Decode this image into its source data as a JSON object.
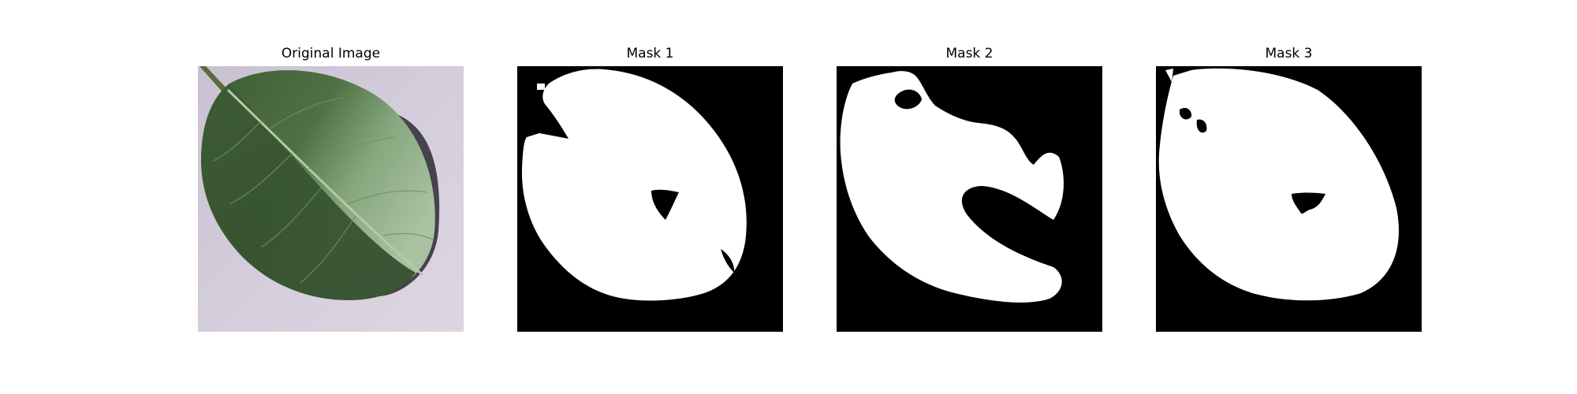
{
  "figure": {
    "panels": [
      {
        "title": "Original Image",
        "kind": "photo",
        "subject": "green apple leaf on pale lavender background"
      },
      {
        "title": "Mask 1",
        "kind": "binary-mask"
      },
      {
        "title": "Mask 2",
        "kind": "binary-mask"
      },
      {
        "title": "Mask 3",
        "kind": "binary-mask"
      }
    ]
  },
  "colors": {
    "photo_background": "#cfc7d6",
    "leaf_dark": "#3f5f35",
    "leaf_light": "#8fae86",
    "leaf_shadow": "#2a2a2f",
    "mask_background": "#000000",
    "mask_foreground": "#ffffff"
  }
}
